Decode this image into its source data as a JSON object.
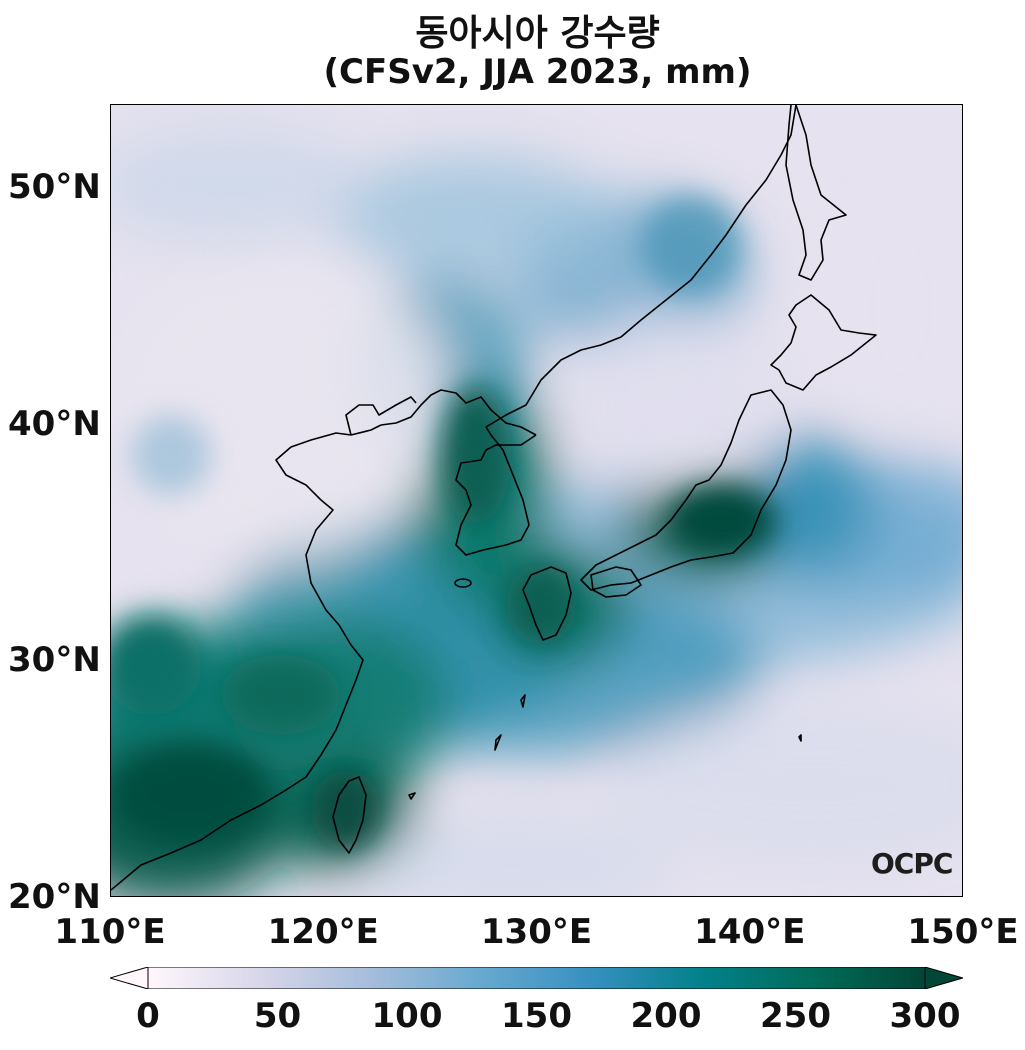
{
  "title": {
    "line1": "동아시아 강수량",
    "line2": "(CFSv2, JJA 2023, mm)"
  },
  "map": {
    "lon_range": [
      110,
      150
    ],
    "lat_range": [
      20,
      53.5
    ],
    "lat_ticks": [
      {
        "value": 50,
        "label": "50°N"
      },
      {
        "value": 40,
        "label": "40°N"
      },
      {
        "value": 30,
        "label": "30°N"
      },
      {
        "value": 20,
        "label": "20°N"
      }
    ],
    "lon_ticks": [
      {
        "value": 110,
        "label": "110°E"
      },
      {
        "value": 120,
        "label": "120°E"
      },
      {
        "value": 130,
        "label": "130°E"
      },
      {
        "value": 140,
        "label": "140°E"
      },
      {
        "value": 150,
        "label": "150°E"
      }
    ],
    "watermark": "OCPC"
  },
  "colorbar": {
    "min": 0,
    "max": 300,
    "extend": "both",
    "colors": [
      "#fff7fb",
      "#d8d6ea",
      "#a6bddb",
      "#67a9cf",
      "#3690c0",
      "#02818a",
      "#016c59",
      "#014636"
    ],
    "ticks": [
      {
        "value": 0,
        "label": "0"
      },
      {
        "value": 50,
        "label": "50"
      },
      {
        "value": 100,
        "label": "100"
      },
      {
        "value": 150,
        "label": "150"
      },
      {
        "value": 200,
        "label": "200"
      },
      {
        "value": 250,
        "label": "250"
      },
      {
        "value": 300,
        "label": "300"
      }
    ]
  }
}
